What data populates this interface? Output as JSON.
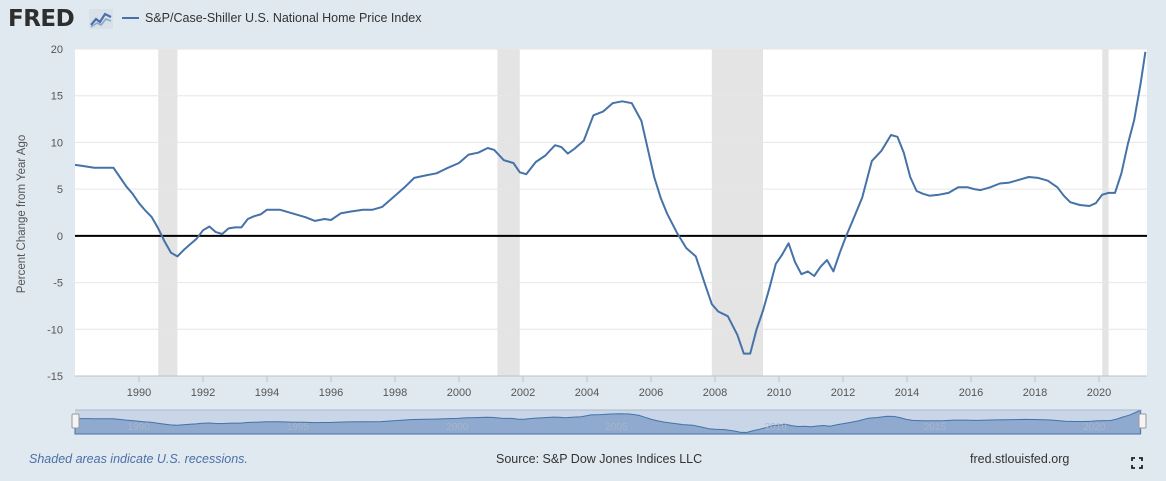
{
  "header": {
    "logo": "FRED",
    "legend_label": "S&P/Case-Shiller U.S. National Home Price Index",
    "series_color": "#4572a7"
  },
  "footer": {
    "recession_note": "Shaded areas indicate U.S. recessions.",
    "source": "Source: S&P Dow Jones Indices LLC",
    "site": "fred.stlouisfed.org"
  },
  "icons": {
    "logo": "line-chart-icon",
    "fullscreen": "expand-icon",
    "handles": "drag-handle-icon"
  },
  "chart_data": {
    "type": "line",
    "ylabel": "Percent Change from Year Ago",
    "xlabel": "",
    "ylim": [
      -15,
      20
    ],
    "yticks": [
      -15,
      -10,
      -5,
      0,
      5,
      10,
      15,
      20
    ],
    "xlim": [
      1988.0,
      2021.5
    ],
    "xticks": [
      "1990",
      "1992",
      "1994",
      "1996",
      "1998",
      "2000",
      "2002",
      "2004",
      "2006",
      "2008",
      "2010",
      "2012",
      "2014",
      "2016",
      "2018",
      "2020"
    ],
    "navigator_labels": [
      "1990",
      "1995",
      "2000",
      "2005",
      "2010",
      "2015",
      "2020"
    ],
    "grid": true,
    "zero_line": true,
    "recessions": [
      [
        1990.6,
        1991.2
      ],
      [
        2001.2,
        2001.9
      ],
      [
        2007.9,
        2009.5
      ],
      [
        2020.1,
        2020.3
      ]
    ],
    "series": [
      {
        "x": [
          1988.0,
          1988.2,
          1988.4,
          1988.6,
          1988.8,
          1989.0,
          1989.2,
          1989.4,
          1989.6,
          1989.8,
          1990.0,
          1990.2,
          1990.4,
          1990.6,
          1990.8,
          1991.0,
          1991.2,
          1991.4,
          1991.6,
          1991.8,
          1992.0,
          1992.2,
          1992.4,
          1992.6,
          1992.8,
          1993.0,
          1993.2,
          1993.4,
          1993.6,
          1993.8,
          1994.0,
          1994.4,
          1994.8,
          1995.2,
          1995.5,
          1995.8,
          1996.0,
          1996.3,
          1996.6,
          1997.0,
          1997.3,
          1997.6,
          1998.0,
          1998.3,
          1998.6,
          1999.0,
          1999.3,
          1999.6,
          2000.0,
          2000.3,
          2000.6,
          2000.9,
          2001.1,
          2001.4,
          2001.7,
          2001.9,
          2002.1,
          2002.4,
          2002.7,
          2003.0,
          2003.2,
          2003.4,
          2003.6,
          2003.9,
          2004.2,
          2004.5,
          2004.8,
          2005.1,
          2005.4,
          2005.7,
          2005.9,
          2006.1,
          2006.3,
          2006.5,
          2006.8,
          2007.1,
          2007.4,
          2007.7,
          2007.9,
          2008.1,
          2008.4,
          2008.7,
          2008.9,
          2009.1,
          2009.3,
          2009.5,
          2009.7,
          2009.9,
          2010.1,
          2010.3,
          2010.5,
          2010.7,
          2010.9,
          2011.1,
          2011.3,
          2011.5,
          2011.7,
          2011.9,
          2012.1,
          2012.3,
          2012.6,
          2012.9,
          2013.2,
          2013.5,
          2013.7,
          2013.9,
          2014.1,
          2014.3,
          2014.5,
          2014.7,
          2015.0,
          2015.3,
          2015.6,
          2015.9,
          2016.1,
          2016.3,
          2016.6,
          2016.9,
          2017.2,
          2017.5,
          2017.8,
          2018.1,
          2018.4,
          2018.7,
          2018.9,
          2019.1,
          2019.4,
          2019.7,
          2019.9,
          2020.1,
          2020.3,
          2020.5,
          2020.7,
          2020.9,
          2021.1,
          2021.3,
          2021.45
        ],
        "values": [
          7.6,
          7.5,
          7.4,
          7.3,
          7.3,
          7.3,
          7.3,
          6.3,
          5.3,
          4.5,
          3.5,
          2.7,
          2.0,
          0.8,
          -0.6,
          -1.8,
          -2.2,
          -1.5,
          -0.9,
          -0.3,
          0.6,
          1.0,
          0.4,
          0.2,
          0.8,
          0.9,
          0.9,
          1.8,
          2.1,
          2.3,
          2.8,
          2.8,
          2.4,
          2.0,
          1.6,
          1.8,
          1.7,
          2.4,
          2.6,
          2.8,
          2.8,
          3.1,
          4.3,
          5.2,
          6.2,
          6.5,
          6.7,
          7.2,
          7.8,
          8.7,
          8.9,
          9.4,
          9.2,
          8.1,
          7.8,
          6.8,
          6.6,
          7.9,
          8.6,
          9.7,
          9.5,
          8.8,
          9.3,
          10.2,
          12.9,
          13.3,
          14.2,
          14.4,
          14.2,
          12.3,
          9.3,
          6.3,
          4.1,
          2.4,
          0.4,
          -1.3,
          -2.2,
          -5.3,
          -7.3,
          -8.1,
          -8.6,
          -10.6,
          -12.6,
          -12.6,
          -10.0,
          -8.0,
          -5.6,
          -3.0,
          -2.0,
          -0.8,
          -2.8,
          -4.1,
          -3.8,
          -4.3,
          -3.3,
          -2.6,
          -3.8,
          -1.8,
          0.0,
          1.6,
          4.1,
          8.0,
          9.1,
          10.8,
          10.6,
          8.9,
          6.3,
          4.8,
          4.5,
          4.3,
          4.4,
          4.6,
          5.2,
          5.2,
          5.0,
          4.9,
          5.2,
          5.6,
          5.7,
          6.0,
          6.3,
          6.2,
          5.9,
          5.2,
          4.3,
          3.6,
          3.3,
          3.2,
          3.5,
          4.4,
          4.6,
          4.6,
          6.7,
          9.8,
          12.4,
          16.3,
          19.7
        ]
      }
    ]
  }
}
